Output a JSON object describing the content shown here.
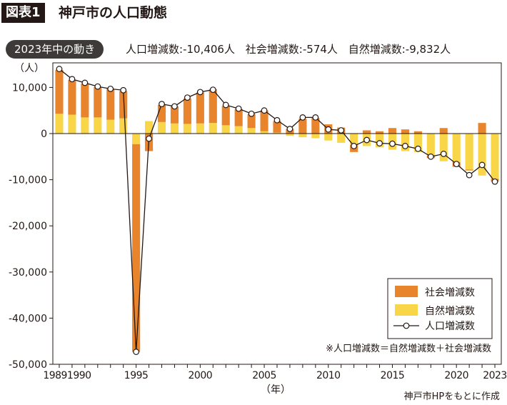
{
  "figure_tag": "図表1",
  "title": "神戸市の人口動態",
  "summary": {
    "badge": "2023年中の動き",
    "items": [
      {
        "label": "人口増減数",
        "value": "-10,406",
        "unit": "人"
      },
      {
        "label": "社会増減数",
        "value": "-574",
        "unit": "人"
      },
      {
        "label": "自然増減数",
        "value": "-9,832",
        "unit": "人"
      }
    ]
  },
  "source": "神戸市HPをもとに作成",
  "colors": {
    "social": "#e8842c",
    "natural": "#f9d648",
    "line": "#231815",
    "axis": "#231815"
  },
  "chart_data": {
    "type": "bar",
    "stacked": true,
    "ylabel": "（人）",
    "xlabel": "（年）",
    "ylim": [
      -50000,
      14000
    ],
    "yticks": [
      10000,
      0,
      -10000,
      -20000,
      -30000,
      -40000,
      -50000
    ],
    "ytick_labels": [
      "10,000",
      "0",
      "-10,000",
      "-20,000",
      "-30,000",
      "-40,000",
      "-50,000"
    ],
    "x": [
      1989,
      1990,
      1991,
      1992,
      1993,
      1994,
      1995,
      1996,
      1997,
      1998,
      1999,
      2000,
      2001,
      2002,
      2003,
      2004,
      2005,
      2006,
      2007,
      2008,
      2009,
      2010,
      2011,
      2012,
      2013,
      2014,
      2015,
      2016,
      2017,
      2018,
      2019,
      2020,
      2021,
      2022,
      2023
    ],
    "xtick_labels": [
      "1989",
      "1990",
      "1995",
      "2000",
      "2005",
      "2010",
      "2015",
      "2020",
      "2023"
    ],
    "series": [
      {
        "name": "社会増減数",
        "kind": "bar",
        "values": [
          9500,
          7500,
          7300,
          6600,
          6700,
          5900,
          -45000,
          -3800,
          3700,
          3700,
          5500,
          6700,
          7300,
          4200,
          3700,
          3000,
          4500,
          2500,
          1000,
          3200,
          3400,
          2000,
          1300,
          -1500,
          700,
          500,
          1200,
          900,
          500,
          -500,
          1200,
          -1000,
          -200,
          2300,
          -574
        ]
      },
      {
        "name": "自然増減数",
        "kind": "bar",
        "values": [
          4300,
          4100,
          3500,
          3500,
          3000,
          3300,
          -2300,
          2700,
          2500,
          2200,
          2100,
          2200,
          2300,
          1800,
          1600,
          1200,
          500,
          200,
          -500,
          -800,
          -1000,
          -1500,
          -2000,
          -2500,
          -2700,
          -3000,
          -3500,
          -3800,
          -4000,
          -4800,
          -6000,
          -6200,
          -7800,
          -9100,
          -9832
        ]
      },
      {
        "name": "人口増減数",
        "kind": "line",
        "values": [
          14000,
          11800,
          11000,
          10200,
          9700,
          9400,
          -47300,
          -1100,
          6400,
          5900,
          7800,
          9000,
          9500,
          6200,
          5400,
          4300,
          5000,
          2900,
          1000,
          3500,
          3500,
          900,
          700,
          -2700,
          -1400,
          -2100,
          -2200,
          -2700,
          -3300,
          -5000,
          -4400,
          -6600,
          -9000,
          -6800,
          -10406
        ]
      }
    ],
    "legend_position": "bottom-right",
    "note": "※人口増減数＝自然増減数＋社会増減数"
  }
}
